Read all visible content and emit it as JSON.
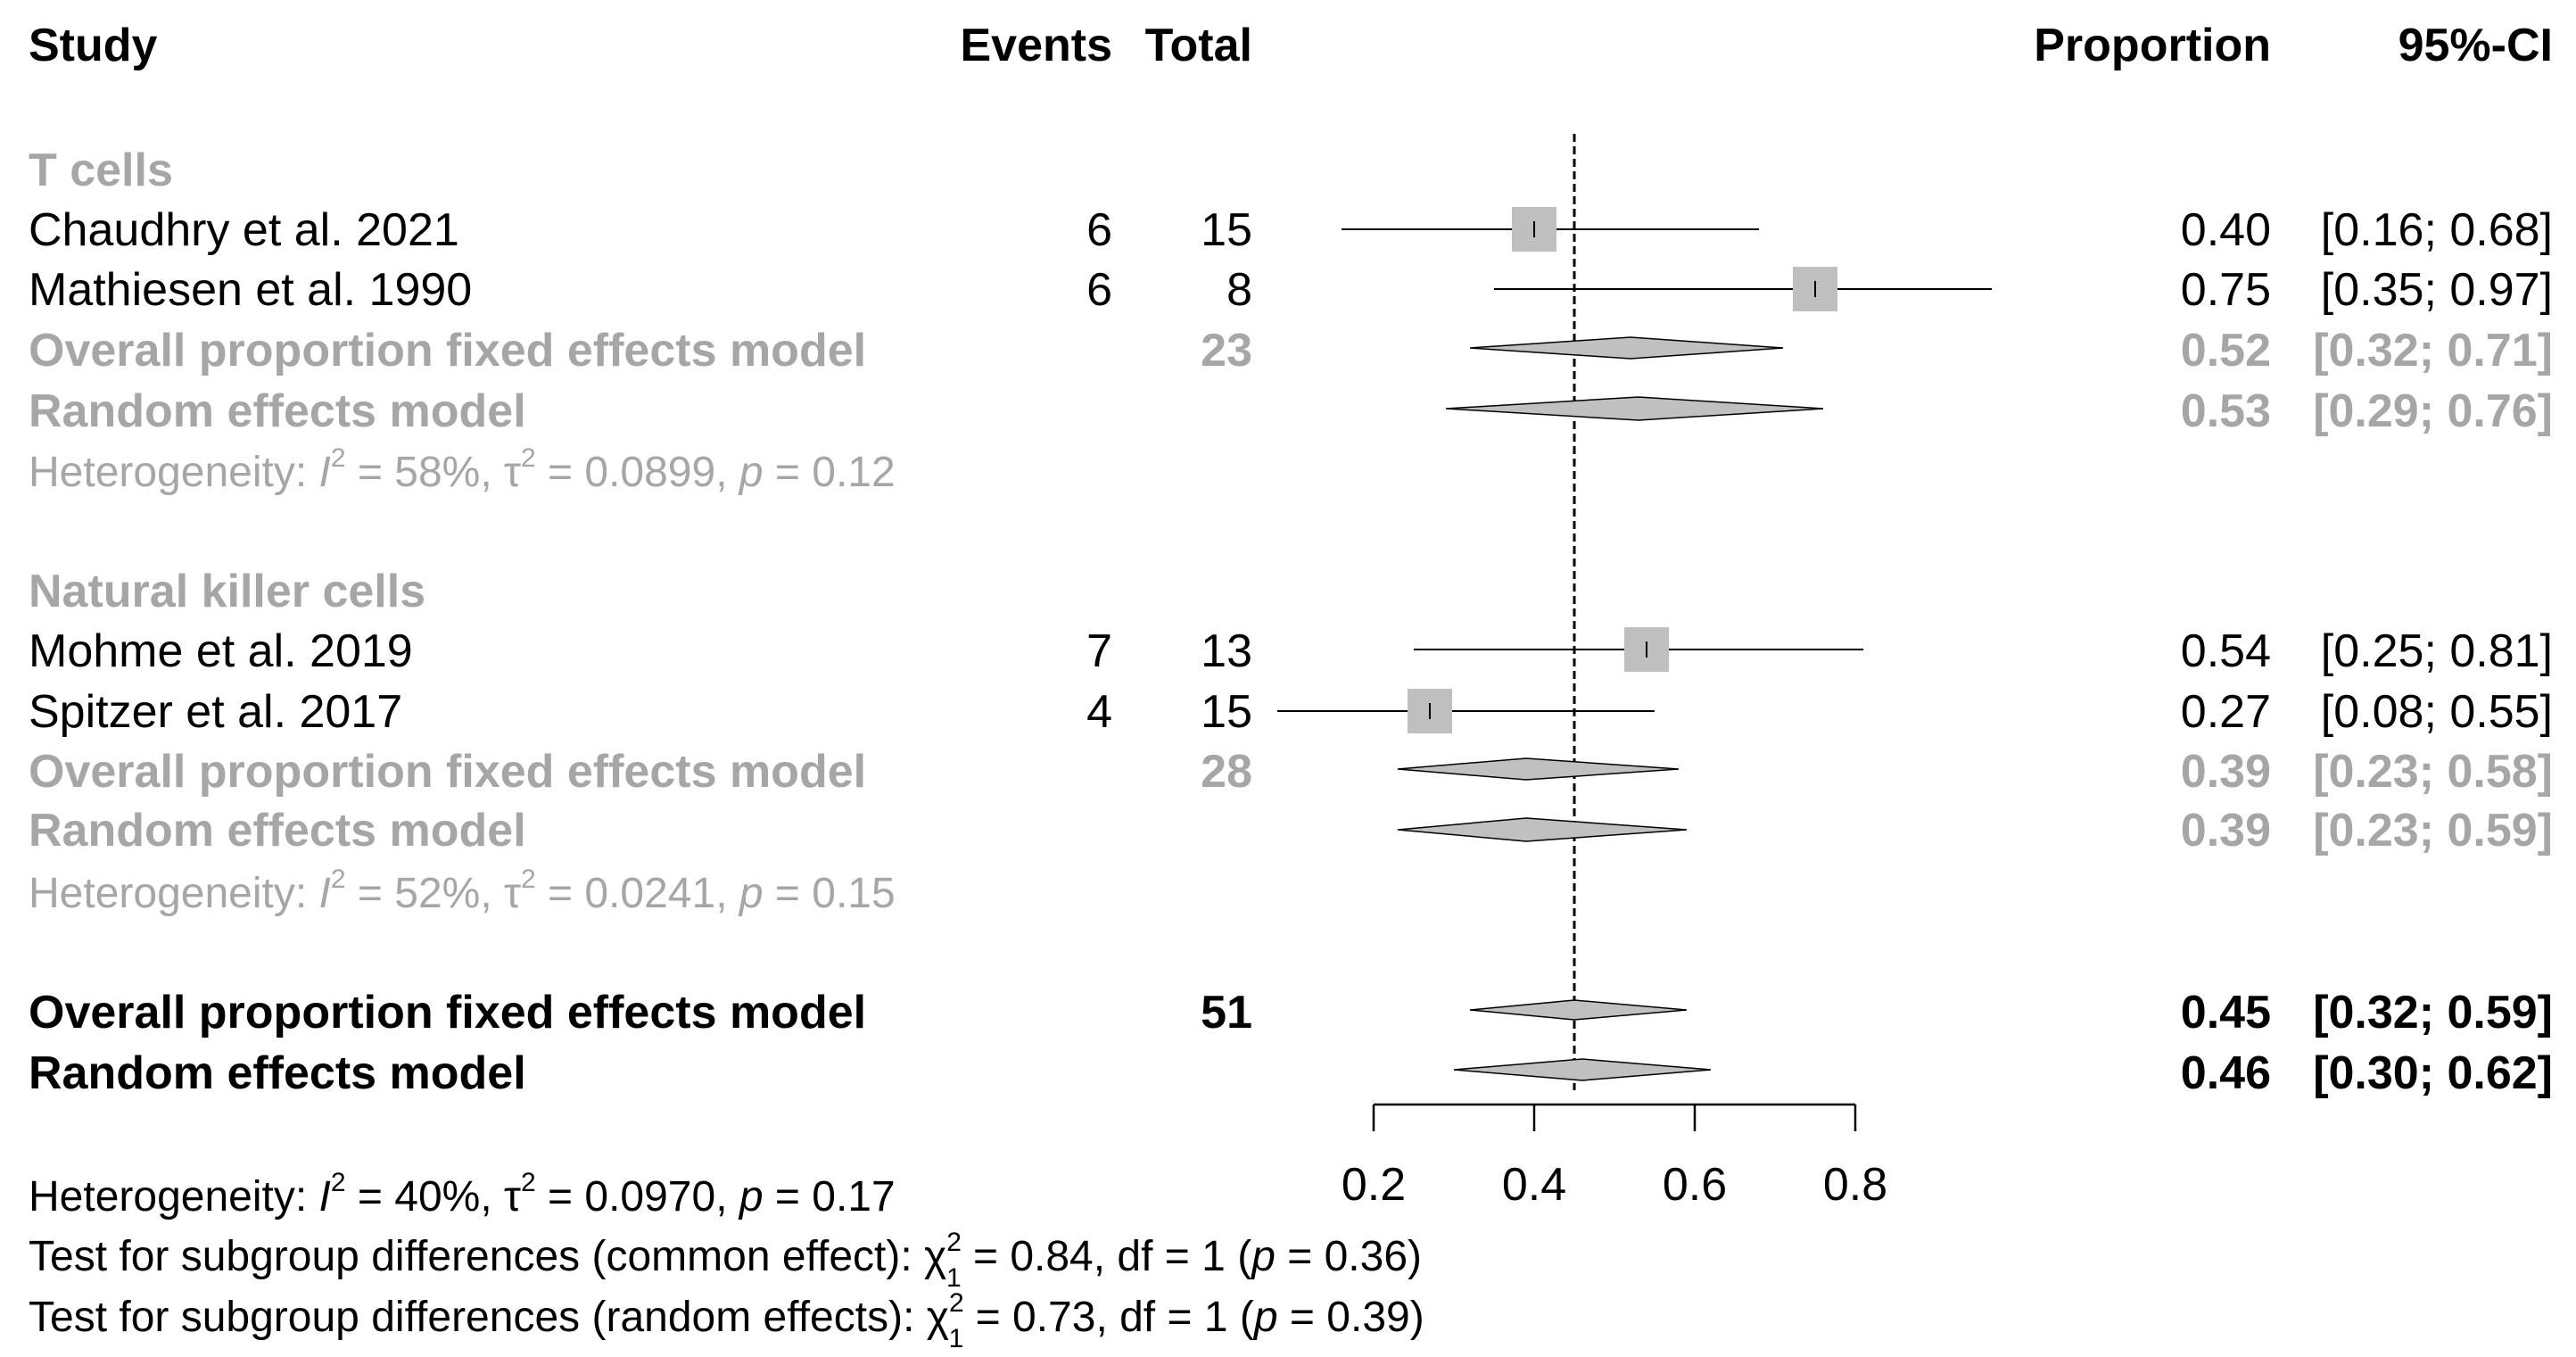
{
  "headers": {
    "study": "Study",
    "events": "Events",
    "total": "Total",
    "proportion": "Proportion",
    "ci": "95%-CI"
  },
  "subgroups": [
    {
      "name": "T cells",
      "studies": [
        {
          "study": "Chaudhry et al. 2021",
          "events": "6",
          "total": "15",
          "proportion": "0.40",
          "ci": "[0.16; 0.68]"
        },
        {
          "study": "Mathiesen et al. 1990",
          "events": "6",
          "total": "8",
          "proportion": "0.75",
          "ci": "[0.35; 0.97]"
        }
      ],
      "fixed": {
        "label": "Overall proportion fixed effects model",
        "total": "23",
        "proportion": "0.52",
        "ci": "[0.32; 0.71]"
      },
      "random": {
        "label": "Random effects model",
        "proportion": "0.53",
        "ci": "[0.29; 0.76]"
      },
      "het": {
        "prefix": "Heterogeneity: ",
        "i2": "58%",
        "tau2": "0.0899",
        "p": "0.12"
      }
    },
    {
      "name": "Natural killer cells",
      "studies": [
        {
          "study": "Mohme et al. 2019",
          "events": "7",
          "total": "13",
          "proportion": "0.54",
          "ci": "[0.25; 0.81]"
        },
        {
          "study": "Spitzer et al. 2017",
          "events": "4",
          "total": "15",
          "proportion": "0.27",
          "ci": "[0.08; 0.55]"
        }
      ],
      "fixed": {
        "label": "Overall proportion fixed effects model",
        "total": "28",
        "proportion": "0.39",
        "ci": "[0.23; 0.58]"
      },
      "random": {
        "label": "Random effects model",
        "proportion": "0.39",
        "ci": "[0.23; 0.59]"
      },
      "het": {
        "prefix": "Heterogeneity: ",
        "i2": "52%",
        "tau2": "0.0241",
        "p": "0.15"
      }
    }
  ],
  "overall": {
    "fixed": {
      "label": "Overall proportion fixed effects model",
      "total": "51",
      "proportion": "0.45",
      "ci": "[0.32; 0.59]"
    },
    "random": {
      "label": "Random effects model",
      "proportion": "0.46",
      "ci": "[0.30; 0.62]"
    },
    "het": {
      "prefix": "Heterogeneity: ",
      "i2": "40%",
      "tau2": "0.0970",
      "p": "0.17"
    }
  },
  "tests": [
    {
      "prefix": "Test for subgroup differences (common effect): ",
      "chi2": "0.84",
      "df": "1",
      "p": "0.36"
    },
    {
      "prefix": "Test for subgroup differences (random effects): ",
      "chi2": "0.73",
      "df": "1",
      "p": "0.39"
    }
  ],
  "chart_data": {
    "type": "forest",
    "title": "",
    "xlim": [
      0.2,
      0.8
    ],
    "ticks": [
      "0.2",
      "0.4",
      "0.6",
      "0.8"
    ],
    "reference_line": 0.45,
    "studies": [
      {
        "name": "Chaudhry et al. 2021",
        "subgroup": "T cells",
        "estimate": 0.4,
        "lower": 0.16,
        "upper": 0.68,
        "weight": 0.6
      },
      {
        "name": "Mathiesen et al. 1990",
        "subgroup": "T cells",
        "estimate": 0.75,
        "lower": 0.35,
        "upper": 0.97,
        "weight": 0.6
      },
      {
        "name": "Mohme et al. 2019",
        "subgroup": "Natural killer cells",
        "estimate": 0.54,
        "lower": 0.25,
        "upper": 0.81,
        "weight": 0.6
      },
      {
        "name": "Spitzer et al. 2017",
        "subgroup": "Natural killer cells",
        "estimate": 0.27,
        "lower": 0.08,
        "upper": 0.55,
        "weight": 0.6
      }
    ],
    "diamonds": [
      {
        "name": "T cells fixed",
        "estimate": 0.52,
        "lower": 0.32,
        "upper": 0.71,
        "style": "subgroup"
      },
      {
        "name": "T cells random",
        "estimate": 0.53,
        "lower": 0.29,
        "upper": 0.76,
        "style": "subgroup"
      },
      {
        "name": "Natural killer cells fixed",
        "estimate": 0.39,
        "lower": 0.23,
        "upper": 0.58,
        "style": "subgroup"
      },
      {
        "name": "Natural killer cells random",
        "estimate": 0.39,
        "lower": 0.23,
        "upper": 0.59,
        "style": "subgroup"
      },
      {
        "name": "Overall fixed",
        "estimate": 0.45,
        "lower": 0.32,
        "upper": 0.59,
        "style": "overall"
      },
      {
        "name": "Overall random",
        "estimate": 0.46,
        "lower": 0.3,
        "upper": 0.62,
        "style": "overall"
      }
    ]
  }
}
